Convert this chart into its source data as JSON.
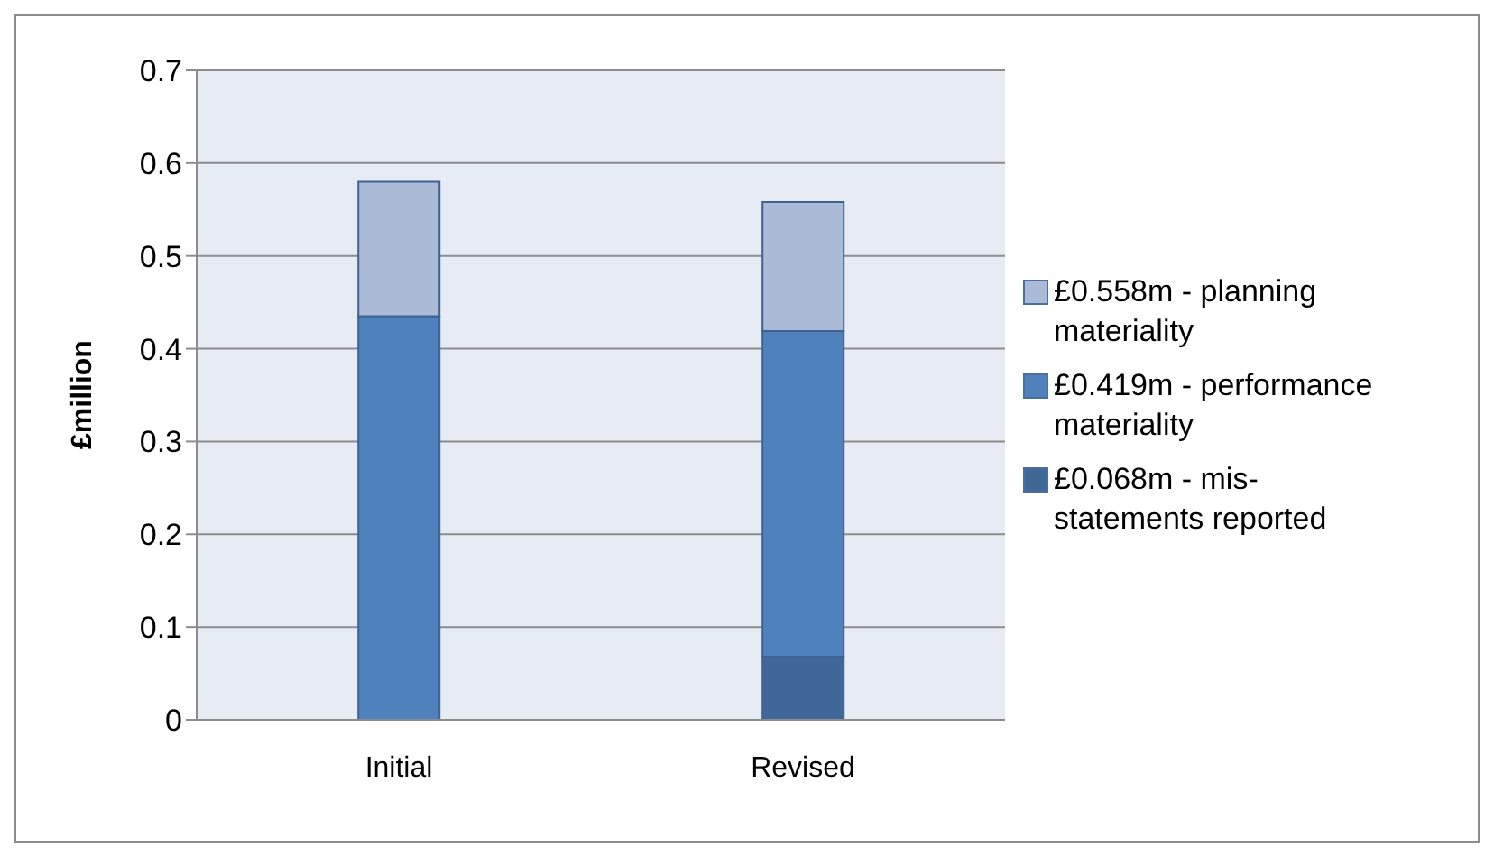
{
  "chart_data": {
    "type": "bar",
    "stacked": true,
    "ylabel": "£million",
    "categories": [
      "Initial",
      "Revised"
    ],
    "series": [
      {
        "name": "£0.068m - mis-statements reported",
        "color": "#3f6899",
        "values": [
          null,
          0.068
        ]
      },
      {
        "name": "£0.419m - performance materiality",
        "color": "#4f81bd",
        "values": [
          0.435,
          0.351
        ]
      },
      {
        "name": "£0.558m - planning materiality",
        "color": "#aabad7",
        "values": [
          0.145,
          0.139
        ]
      }
    ],
    "ylim": [
      0,
      0.7
    ],
    "yticks": [
      0,
      0.1,
      0.2,
      0.3,
      0.4,
      0.5,
      0.6,
      0.7
    ],
    "grid": "y",
    "legend": "right"
  }
}
